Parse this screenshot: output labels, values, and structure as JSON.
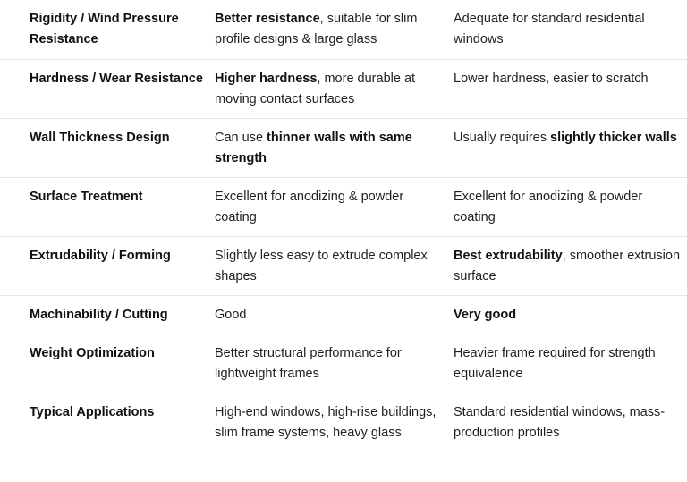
{
  "rows": [
    {
      "property": "Rigidity / Wind Pressure Resistance",
      "col_a": {
        "bold": "Better resistance",
        "text": ", suitable for slim profile designs & large glass"
      },
      "col_b": {
        "pre": "Adequate for standard residential windows",
        "bold": "",
        "post": ""
      }
    },
    {
      "property": "Hardness / Wear Resistance",
      "col_a": {
        "bold": "Higher hardness",
        "text": ", more durable at moving contact surfaces"
      },
      "col_b": {
        "pre": "Lower hardness, easier to scratch",
        "bold": "",
        "post": ""
      }
    },
    {
      "property": "Wall Thickness Design",
      "col_a": {
        "pre": "Can use ",
        "bold": "thinner walls with same strength"
      },
      "col_b": {
        "pre": "Usually requires ",
        "bold": "slightly thicker walls",
        "post": ""
      }
    },
    {
      "property": "Surface Treatment",
      "col_a": {
        "pre": "Excellent for anodizing & powder coating",
        "bold": ""
      },
      "col_b": {
        "pre": "Excellent for anodizing & powder coating",
        "bold": "",
        "post": ""
      }
    },
    {
      "property": "Extrudability / Forming",
      "col_a": {
        "pre": "Slightly less easy to extrude complex shapes",
        "bold": ""
      },
      "col_b": {
        "pre": "",
        "bold": "Best extrudability",
        "post": ", smoother extrusion surface"
      }
    },
    {
      "property": "Machinability / Cutting",
      "col_a": {
        "pre": "Good",
        "bold": ""
      },
      "col_b": {
        "pre": "",
        "bold": "Very good",
        "post": ""
      }
    },
    {
      "property": "Weight Optimization",
      "col_a": {
        "pre": "Better structural performance for lightweight frames",
        "bold": ""
      },
      "col_b": {
        "pre": "Heavier frame required for strength equivalence",
        "bold": "",
        "post": ""
      }
    },
    {
      "property": "Typical Applications",
      "col_a": {
        "pre": "High-end windows, high-rise buildings, slim frame systems, heavy glass",
        "bold": ""
      },
      "col_b": {
        "pre": "Standard residential windows, mass-production profiles",
        "bold": "",
        "post": ""
      }
    }
  ]
}
